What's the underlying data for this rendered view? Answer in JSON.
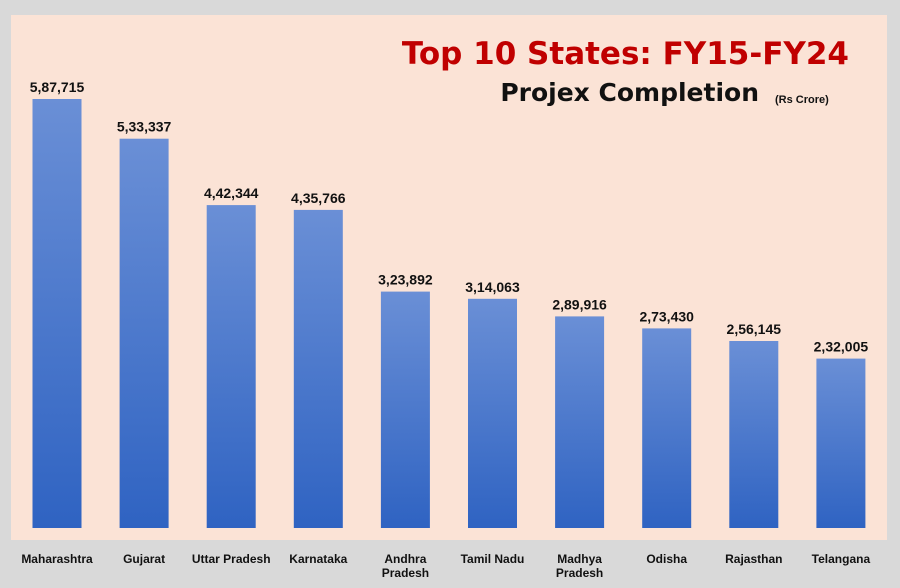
{
  "chart_data": {
    "type": "bar",
    "title": "Top 10 States: FY15-FY24",
    "subtitle": "Projex Completion",
    "unit_note": "(Rs Crore)",
    "categories": [
      "Maharashtra",
      "Gujarat",
      "Uttar Pradesh",
      "Karnataka",
      "Andhra Pradesh",
      "Tamil Nadu",
      "Madhya Pradesh",
      "Odisha",
      "Rajasthan",
      "Telangana"
    ],
    "category_label_lines": [
      [
        "Maharashtra"
      ],
      [
        "Gujarat"
      ],
      [
        "Uttar Pradesh"
      ],
      [
        "Karnataka"
      ],
      [
        "Andhra",
        "Pradesh"
      ],
      [
        "Tamil Nadu"
      ],
      [
        "Madhya",
        "Pradesh"
      ],
      [
        "Odisha"
      ],
      [
        "Rajasthan"
      ],
      [
        "Telangana"
      ]
    ],
    "values": [
      587715,
      533337,
      442344,
      435766,
      323892,
      314063,
      289916,
      273430,
      256145,
      232005
    ],
    "value_labels": [
      "5,87,715",
      "5,33,337",
      "4,42,344",
      "4,35,766",
      "3,23,892",
      "3,14,063",
      "2,89,916",
      "2,73,430",
      "2,56,145",
      "2,32,005"
    ],
    "ylim": [
      0,
      587715
    ],
    "grid": false,
    "legend": "none",
    "colors": {
      "bar_top": "#6a8fd6",
      "bar_bottom": "#2f63c2",
      "title": "#c00000",
      "background": "#fbe3d6",
      "frame": "#d9d9d9"
    }
  }
}
